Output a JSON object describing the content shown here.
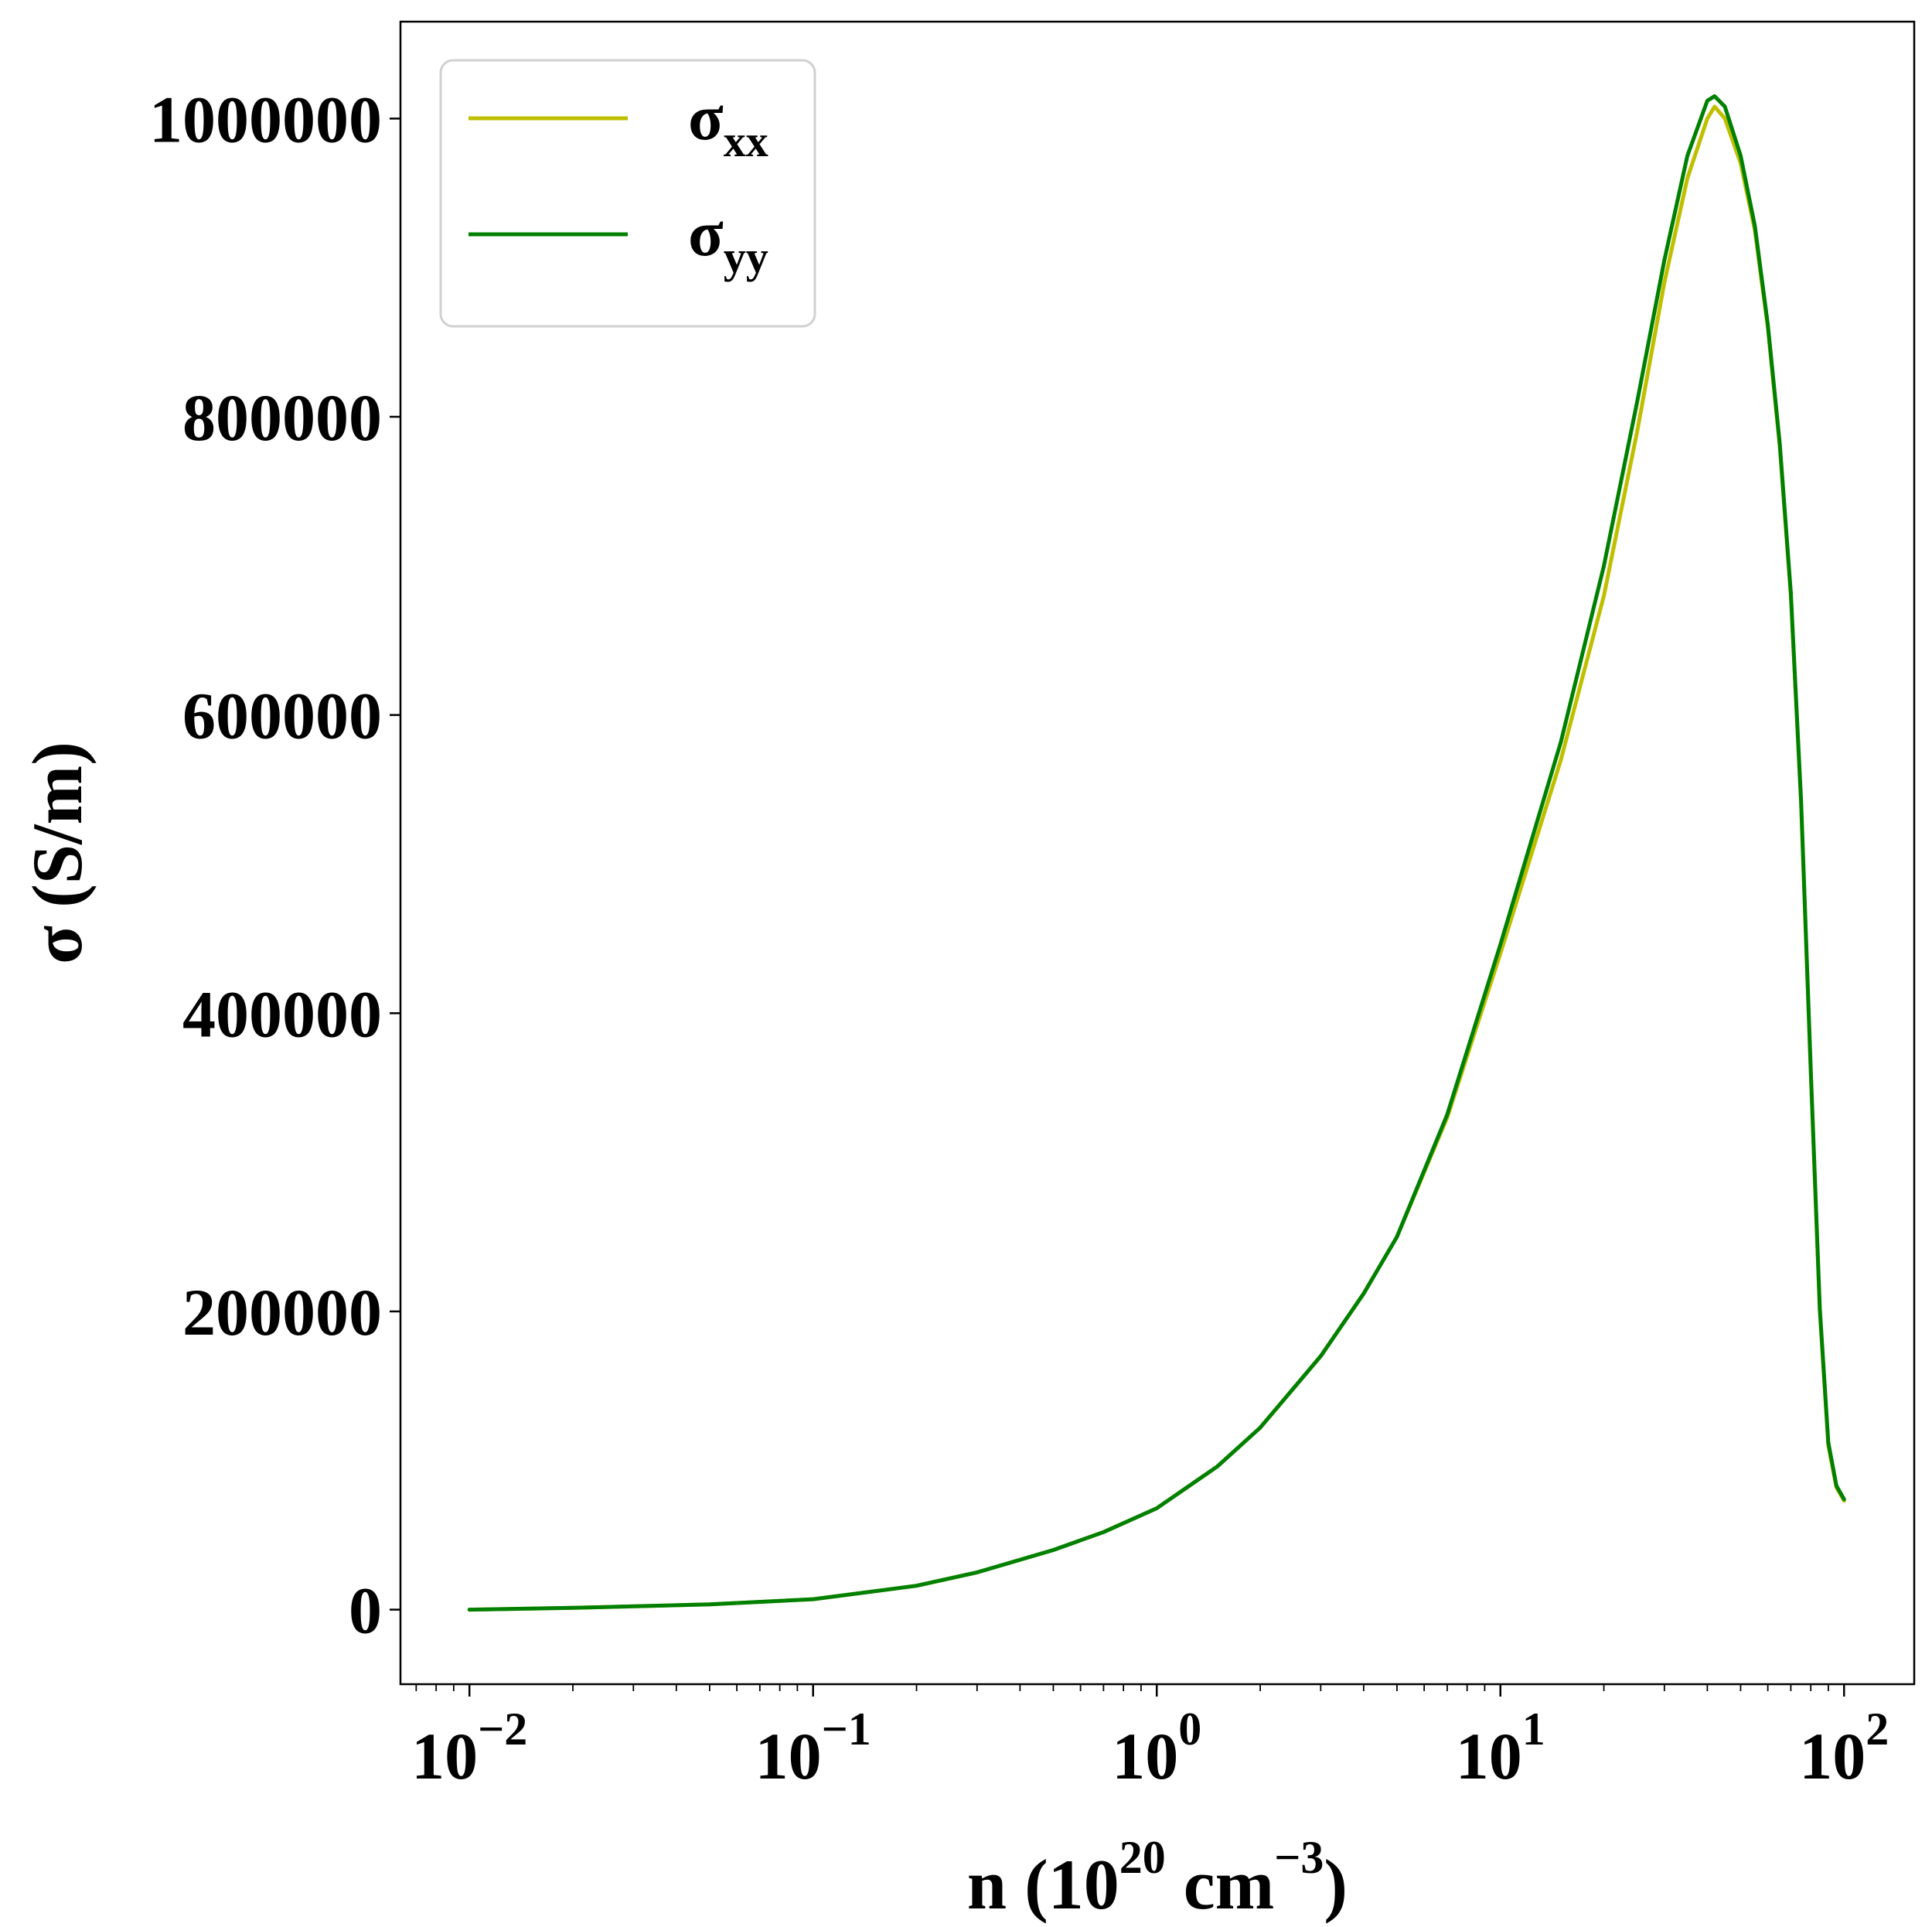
{
  "chart_data": {
    "type": "line",
    "title": "",
    "xlabel": {
      "base": "n (10",
      "sup1": "20",
      "mid": " cm",
      "sup2": "−3",
      "end": ")"
    },
    "ylabel": "σ (S/m)",
    "xscale": "log",
    "xlim": [
      0.0063,
      160
    ],
    "ylim": [
      -50000,
      1065000
    ],
    "yticks": [
      0,
      200000,
      400000,
      600000,
      800000,
      1000000
    ],
    "xticks": [
      {
        "value": 0.01,
        "base": "10",
        "exp": "−2"
      },
      {
        "value": 0.1,
        "base": "10",
        "exp": "−1"
      },
      {
        "value": 1,
        "base": "10",
        "exp": "0"
      },
      {
        "value": 10,
        "base": "10",
        "exp": "1"
      },
      {
        "value": 100,
        "base": "10",
        "exp": "2"
      }
    ],
    "grid": false,
    "legend_position": "top-left",
    "x": [
      0.01,
      0.02,
      0.05,
      0.1,
      0.2,
      0.3,
      0.5,
      0.7,
      1,
      1.5,
      2,
      3,
      4,
      5,
      7,
      10,
      15,
      20,
      25,
      30,
      35,
      40,
      42,
      45,
      50,
      55,
      60,
      65,
      70,
      75,
      80,
      85,
      90,
      95,
      100
    ],
    "series": [
      {
        "name": {
          "base": "σ",
          "sub": "xx"
        },
        "color": "#bfbf00",
        "values": [
          0,
          1200,
          3500,
          7000,
          16000,
          25000,
          40000,
          52000,
          68000,
          96000,
          122000,
          170000,
          212000,
          250000,
          330000,
          440000,
          570000,
          680000,
          790000,
          890000,
          960000,
          1000000,
          1008000,
          1000000,
          970000,
          925000,
          860000,
          780000,
          680000,
          540000,
          360000,
          200000,
          110000,
          82000,
          73000
        ]
      },
      {
        "name": {
          "base": "σ",
          "sub": "yy"
        },
        "color": "#008000",
        "values": [
          0,
          1200,
          3500,
          7000,
          16000,
          25000,
          40000,
          52000,
          68000,
          96000,
          122000,
          170000,
          212000,
          250000,
          332000,
          446000,
          582000,
          700000,
          810000,
          905000,
          975000,
          1012000,
          1015000,
          1008000,
          975000,
          928000,
          862000,
          782000,
          682000,
          542000,
          362000,
          202000,
          112000,
          83000,
          74000
        ]
      }
    ]
  }
}
